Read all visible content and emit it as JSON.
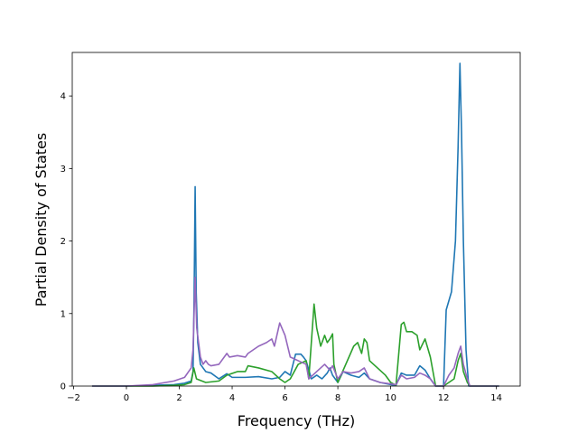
{
  "chart_data": {
    "type": "line",
    "title": "",
    "xlabel": "Frequency (THz)",
    "ylabel": "Partial Density of States",
    "xlim": [
      -2.05,
      14.9
    ],
    "ylim": [
      0,
      4.6
    ],
    "xticks": [
      -2,
      0,
      2,
      4,
      6,
      8,
      10,
      12,
      14
    ],
    "yticks": [
      0,
      1,
      2,
      3,
      4
    ],
    "grid": false,
    "legend": "none",
    "series": [
      {
        "color": "#1f77b4",
        "points": [
          [
            -1.3,
            0
          ],
          [
            0,
            0
          ],
          [
            1,
            0.01
          ],
          [
            1.8,
            0.02
          ],
          [
            2.2,
            0.04
          ],
          [
            2.45,
            0.07
          ],
          [
            2.52,
            0.2
          ],
          [
            2.56,
            1.2
          ],
          [
            2.6,
            2.75
          ],
          [
            2.64,
            1.3
          ],
          [
            2.7,
            0.6
          ],
          [
            2.8,
            0.3
          ],
          [
            3.0,
            0.2
          ],
          [
            3.2,
            0.18
          ],
          [
            3.5,
            0.1
          ],
          [
            3.8,
            0.17
          ],
          [
            4.0,
            0.12
          ],
          [
            4.5,
            0.12
          ],
          [
            5.0,
            0.13
          ],
          [
            5.5,
            0.1
          ],
          [
            5.8,
            0.12
          ],
          [
            6.0,
            0.2
          ],
          [
            6.2,
            0.15
          ],
          [
            6.4,
            0.44
          ],
          [
            6.6,
            0.44
          ],
          [
            6.7,
            0.4
          ],
          [
            6.8,
            0.35
          ],
          [
            7.0,
            0.1
          ],
          [
            7.2,
            0.15
          ],
          [
            7.4,
            0.1
          ],
          [
            7.6,
            0.18
          ],
          [
            7.7,
            0.25
          ],
          [
            7.8,
            0.15
          ],
          [
            8.0,
            0.05
          ],
          [
            8.2,
            0.2
          ],
          [
            8.5,
            0.15
          ],
          [
            8.8,
            0.12
          ],
          [
            9.0,
            0.18
          ],
          [
            9.2,
            0.1
          ],
          [
            9.6,
            0.05
          ],
          [
            10.0,
            0.02
          ],
          [
            10.2,
            0.01
          ],
          [
            10.4,
            0.18
          ],
          [
            10.6,
            0.15
          ],
          [
            10.9,
            0.15
          ],
          [
            11.1,
            0.28
          ],
          [
            11.3,
            0.22
          ],
          [
            11.5,
            0.1
          ],
          [
            11.7,
            0
          ],
          [
            12.0,
            0
          ],
          [
            12.1,
            1.05
          ],
          [
            12.3,
            1.3
          ],
          [
            12.45,
            2.0
          ],
          [
            12.55,
            3.3
          ],
          [
            12.62,
            4.45
          ],
          [
            12.68,
            3.5
          ],
          [
            12.75,
            2.0
          ],
          [
            12.85,
            0.5
          ],
          [
            12.95,
            0
          ],
          [
            14.1,
            0
          ]
        ]
      },
      {
        "color": "#2ca02c",
        "points": [
          [
            -1.3,
            0
          ],
          [
            0,
            0
          ],
          [
            1,
            0
          ],
          [
            1.8,
            0.01
          ],
          [
            2.2,
            0.02
          ],
          [
            2.45,
            0.05
          ],
          [
            2.55,
            0.25
          ],
          [
            2.65,
            0.1
          ],
          [
            3.0,
            0.05
          ],
          [
            3.5,
            0.07
          ],
          [
            3.8,
            0.15
          ],
          [
            4.2,
            0.2
          ],
          [
            4.5,
            0.2
          ],
          [
            4.6,
            0.28
          ],
          [
            5.0,
            0.25
          ],
          [
            5.5,
            0.2
          ],
          [
            5.8,
            0.1
          ],
          [
            6.0,
            0.05
          ],
          [
            6.2,
            0.1
          ],
          [
            6.5,
            0.3
          ],
          [
            6.8,
            0.35
          ],
          [
            6.9,
            0.1
          ],
          [
            7.1,
            1.13
          ],
          [
            7.2,
            0.8
          ],
          [
            7.35,
            0.55
          ],
          [
            7.5,
            0.7
          ],
          [
            7.6,
            0.6
          ],
          [
            7.7,
            0.65
          ],
          [
            7.8,
            0.72
          ],
          [
            7.85,
            0.3
          ],
          [
            8.0,
            0.05
          ],
          [
            8.3,
            0.3
          ],
          [
            8.6,
            0.55
          ],
          [
            8.75,
            0.6
          ],
          [
            8.9,
            0.45
          ],
          [
            9.0,
            0.65
          ],
          [
            9.1,
            0.6
          ],
          [
            9.2,
            0.35
          ],
          [
            9.5,
            0.25
          ],
          [
            9.8,
            0.15
          ],
          [
            10.0,
            0.05
          ],
          [
            10.2,
            0.01
          ],
          [
            10.4,
            0.85
          ],
          [
            10.5,
            0.88
          ],
          [
            10.6,
            0.75
          ],
          [
            10.8,
            0.75
          ],
          [
            11.0,
            0.7
          ],
          [
            11.1,
            0.5
          ],
          [
            11.3,
            0.65
          ],
          [
            11.5,
            0.4
          ],
          [
            11.7,
            0
          ],
          [
            12.0,
            0
          ],
          [
            12.2,
            0.05
          ],
          [
            12.4,
            0.1
          ],
          [
            12.55,
            0.35
          ],
          [
            12.65,
            0.45
          ],
          [
            12.75,
            0.2
          ],
          [
            12.9,
            0.05
          ],
          [
            13.0,
            0
          ],
          [
            14.1,
            0
          ]
        ]
      },
      {
        "color": "#9467bd",
        "points": [
          [
            -1.3,
            0
          ],
          [
            0,
            0
          ],
          [
            1,
            0.02
          ],
          [
            1.8,
            0.07
          ],
          [
            2.2,
            0.12
          ],
          [
            2.45,
            0.25
          ],
          [
            2.52,
            0.5
          ],
          [
            2.6,
            1.5
          ],
          [
            2.66,
            0.8
          ],
          [
            2.8,
            0.4
          ],
          [
            2.9,
            0.3
          ],
          [
            3.0,
            0.35
          ],
          [
            3.1,
            0.3
          ],
          [
            3.2,
            0.28
          ],
          [
            3.5,
            0.3
          ],
          [
            3.8,
            0.45
          ],
          [
            3.9,
            0.4
          ],
          [
            4.2,
            0.42
          ],
          [
            4.5,
            0.4
          ],
          [
            4.6,
            0.45
          ],
          [
            5.0,
            0.55
          ],
          [
            5.3,
            0.6
          ],
          [
            5.5,
            0.65
          ],
          [
            5.6,
            0.55
          ],
          [
            5.8,
            0.87
          ],
          [
            6.0,
            0.7
          ],
          [
            6.2,
            0.4
          ],
          [
            6.5,
            0.35
          ],
          [
            6.8,
            0.3
          ],
          [
            6.9,
            0.1
          ],
          [
            7.2,
            0.2
          ],
          [
            7.5,
            0.3
          ],
          [
            7.7,
            0.22
          ],
          [
            7.8,
            0.28
          ],
          [
            8.0,
            0.1
          ],
          [
            8.2,
            0.2
          ],
          [
            8.5,
            0.18
          ],
          [
            8.8,
            0.2
          ],
          [
            9.0,
            0.25
          ],
          [
            9.2,
            0.1
          ],
          [
            9.6,
            0.05
          ],
          [
            10.0,
            0.03
          ],
          [
            10.2,
            0.02
          ],
          [
            10.4,
            0.15
          ],
          [
            10.6,
            0.1
          ],
          [
            10.9,
            0.12
          ],
          [
            11.1,
            0.18
          ],
          [
            11.3,
            0.15
          ],
          [
            11.5,
            0.1
          ],
          [
            11.7,
            0
          ],
          [
            12.0,
            0
          ],
          [
            12.2,
            0.15
          ],
          [
            12.4,
            0.25
          ],
          [
            12.55,
            0.45
          ],
          [
            12.65,
            0.55
          ],
          [
            12.75,
            0.3
          ],
          [
            12.9,
            0.1
          ],
          [
            13.0,
            0
          ],
          [
            14.1,
            0
          ]
        ]
      }
    ]
  }
}
